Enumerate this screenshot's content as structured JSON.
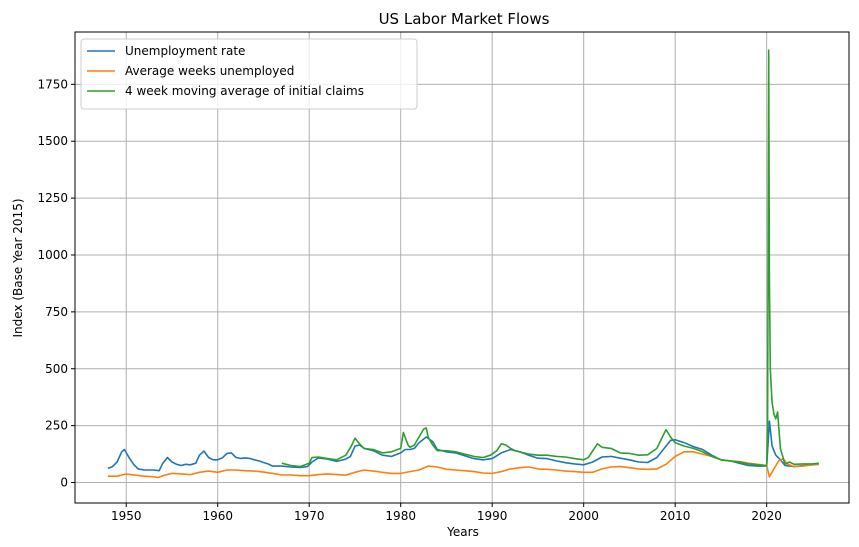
{
  "chart_data": {
    "type": "line",
    "title": "US Labor Market Flows",
    "xlabel": "Years",
    "ylabel": "Index (Base Year 2015)",
    "xlim": [
      1944.4,
      1929.0
    ],
    "ylim": [
      -90,
      1980
    ],
    "x_ticks": [
      1950,
      1960,
      1970,
      1980,
      1990,
      2000,
      2010,
      2020
    ],
    "y_ticks": [
      0,
      250,
      500,
      750,
      1000,
      1250,
      1500,
      1750
    ],
    "grid": true,
    "legend_position": "upper left",
    "series": [
      {
        "name": "Unemployment rate",
        "color": "#1f77b4",
        "points": [
          [
            1948.0,
            62
          ],
          [
            1948.5,
            70
          ],
          [
            1949.0,
            90
          ],
          [
            1949.5,
            135
          ],
          [
            1949.8,
            145
          ],
          [
            1950.3,
            110
          ],
          [
            1950.8,
            80
          ],
          [
            1951.3,
            60
          ],
          [
            1952.0,
            55
          ],
          [
            1952.5,
            55
          ],
          [
            1953.0,
            55
          ],
          [
            1953.6,
            52
          ],
          [
            1954.0,
            85
          ],
          [
            1954.5,
            110
          ],
          [
            1955.0,
            90
          ],
          [
            1955.5,
            80
          ],
          [
            1956.0,
            75
          ],
          [
            1956.5,
            80
          ],
          [
            1957.0,
            78
          ],
          [
            1957.6,
            85
          ],
          [
            1958.0,
            120
          ],
          [
            1958.5,
            138
          ],
          [
            1959.0,
            110
          ],
          [
            1959.5,
            100
          ],
          [
            1960.0,
            100
          ],
          [
            1960.5,
            108
          ],
          [
            1961.0,
            128
          ],
          [
            1961.5,
            130
          ],
          [
            1962.0,
            110
          ],
          [
            1962.5,
            106
          ],
          [
            1963.0,
            108
          ],
          [
            1963.5,
            106
          ],
          [
            1964.0,
            100
          ],
          [
            1964.5,
            95
          ],
          [
            1965.0,
            88
          ],
          [
            1965.5,
            82
          ],
          [
            1966.0,
            72
          ],
          [
            1967.0,
            72
          ],
          [
            1968.0,
            68
          ],
          [
            1969.0,
            66
          ],
          [
            1969.8,
            70
          ],
          [
            1970.3,
            90
          ],
          [
            1971.0,
            108
          ],
          [
            1972.0,
            103
          ],
          [
            1973.0,
            93
          ],
          [
            1974.0,
            103
          ],
          [
            1974.5,
            115
          ],
          [
            1975.0,
            160
          ],
          [
            1975.5,
            165
          ],
          [
            1976.0,
            150
          ],
          [
            1977.0,
            140
          ],
          [
            1978.0,
            120
          ],
          [
            1979.0,
            115
          ],
          [
            1980.0,
            130
          ],
          [
            1980.5,
            145
          ],
          [
            1981.0,
            145
          ],
          [
            1981.5,
            150
          ],
          [
            1982.0,
            175
          ],
          [
            1982.8,
            200
          ],
          [
            1983.5,
            180
          ],
          [
            1984.0,
            145
          ],
          [
            1985.0,
            135
          ],
          [
            1986.0,
            130
          ],
          [
            1987.0,
            118
          ],
          [
            1988.0,
            105
          ],
          [
            1989.0,
            100
          ],
          [
            1990.0,
            105
          ],
          [
            1991.0,
            130
          ],
          [
            1992.0,
            145
          ],
          [
            1993.0,
            135
          ],
          [
            1994.0,
            120
          ],
          [
            1995.0,
            107
          ],
          [
            1996.0,
            105
          ],
          [
            1997.0,
            95
          ],
          [
            1998.0,
            87
          ],
          [
            1999.0,
            82
          ],
          [
            2000.0,
            78
          ],
          [
            2001.0,
            90
          ],
          [
            2002.0,
            112
          ],
          [
            2003.0,
            115
          ],
          [
            2004.0,
            107
          ],
          [
            2005.0,
            100
          ],
          [
            2006.0,
            90
          ],
          [
            2007.0,
            88
          ],
          [
            2008.0,
            110
          ],
          [
            2008.8,
            150
          ],
          [
            2009.5,
            185
          ],
          [
            2010.0,
            188
          ],
          [
            2011.0,
            175
          ],
          [
            2012.0,
            158
          ],
          [
            2013.0,
            145
          ],
          [
            2014.0,
            120
          ],
          [
            2015.0,
            100
          ],
          [
            2016.0,
            95
          ],
          [
            2017.0,
            85
          ],
          [
            2018.0,
            75
          ],
          [
            2019.0,
            72
          ],
          [
            2020.0,
            72
          ],
          [
            2020.3,
            270
          ],
          [
            2020.6,
            160
          ],
          [
            2021.0,
            120
          ],
          [
            2021.5,
            100
          ],
          [
            2022.0,
            75
          ],
          [
            2023.0,
            70
          ],
          [
            2024.0,
            75
          ],
          [
            2025.0,
            78
          ],
          [
            2025.7,
            80
          ]
        ]
      },
      {
        "name": "Average weeks unemployed",
        "color": "#ff7f0e",
        "points": [
          [
            1948.0,
            28
          ],
          [
            1949.0,
            28
          ],
          [
            1950.0,
            38
          ],
          [
            1951.0,
            32
          ],
          [
            1952.0,
            28
          ],
          [
            1953.0,
            25
          ],
          [
            1953.5,
            22
          ],
          [
            1954.0,
            30
          ],
          [
            1955.0,
            40
          ],
          [
            1956.0,
            38
          ],
          [
            1957.0,
            35
          ],
          [
            1958.0,
            45
          ],
          [
            1959.0,
            50
          ],
          [
            1960.0,
            45
          ],
          [
            1961.0,
            55
          ],
          [
            1962.0,
            55
          ],
          [
            1963.0,
            52
          ],
          [
            1964.0,
            50
          ],
          [
            1965.0,
            46
          ],
          [
            1966.0,
            40
          ],
          [
            1967.0,
            33
          ],
          [
            1968.0,
            33
          ],
          [
            1969.0,
            30
          ],
          [
            1970.0,
            30
          ],
          [
            1971.0,
            35
          ],
          [
            1972.0,
            38
          ],
          [
            1973.0,
            35
          ],
          [
            1974.0,
            32
          ],
          [
            1975.0,
            45
          ],
          [
            1976.0,
            55
          ],
          [
            1977.0,
            50
          ],
          [
            1978.0,
            45
          ],
          [
            1979.0,
            40
          ],
          [
            1980.0,
            40
          ],
          [
            1981.0,
            48
          ],
          [
            1982.0,
            55
          ],
          [
            1983.0,
            72
          ],
          [
            1984.0,
            68
          ],
          [
            1985.0,
            58
          ],
          [
            1986.0,
            55
          ],
          [
            1987.0,
            52
          ],
          [
            1988.0,
            48
          ],
          [
            1989.0,
            42
          ],
          [
            1990.0,
            40
          ],
          [
            1991.0,
            48
          ],
          [
            1992.0,
            60
          ],
          [
            1993.0,
            65
          ],
          [
            1994.0,
            68
          ],
          [
            1995.0,
            60
          ],
          [
            1996.0,
            58
          ],
          [
            1997.0,
            55
          ],
          [
            1998.0,
            50
          ],
          [
            1999.0,
            48
          ],
          [
            2000.0,
            45
          ],
          [
            2001.0,
            45
          ],
          [
            2002.0,
            60
          ],
          [
            2003.0,
            68
          ],
          [
            2004.0,
            70
          ],
          [
            2005.0,
            65
          ],
          [
            2006.0,
            60
          ],
          [
            2007.0,
            58
          ],
          [
            2008.0,
            60
          ],
          [
            2009.0,
            80
          ],
          [
            2010.0,
            115
          ],
          [
            2011.0,
            135
          ],
          [
            2012.0,
            135
          ],
          [
            2013.0,
            125
          ],
          [
            2014.0,
            115
          ],
          [
            2015.0,
            100
          ],
          [
            2016.0,
            95
          ],
          [
            2017.0,
            92
          ],
          [
            2018.0,
            85
          ],
          [
            2019.0,
            80
          ],
          [
            2020.0,
            75
          ],
          [
            2020.3,
            25
          ],
          [
            2020.8,
            60
          ],
          [
            2021.3,
            95
          ],
          [
            2021.8,
            105
          ],
          [
            2022.3,
            80
          ],
          [
            2023.0,
            70
          ],
          [
            2024.0,
            72
          ],
          [
            2025.0,
            78
          ],
          [
            2025.7,
            82
          ]
        ]
      },
      {
        "name": "4 week moving average of initial claims",
        "color": "#2ca02c",
        "points": [
          [
            1967.0,
            85
          ],
          [
            1968.0,
            75
          ],
          [
            1969.0,
            70
          ],
          [
            1970.0,
            85
          ],
          [
            1970.3,
            110
          ],
          [
            1971.0,
            112
          ],
          [
            1972.0,
            105
          ],
          [
            1973.0,
            100
          ],
          [
            1974.0,
            120
          ],
          [
            1974.6,
            160
          ],
          [
            1975.0,
            195
          ],
          [
            1975.5,
            170
          ],
          [
            1976.0,
            150
          ],
          [
            1977.0,
            145
          ],
          [
            1978.0,
            130
          ],
          [
            1979.0,
            135
          ],
          [
            1980.0,
            150
          ],
          [
            1980.3,
            220
          ],
          [
            1980.8,
            165
          ],
          [
            1981.0,
            155
          ],
          [
            1981.5,
            165
          ],
          [
            1982.0,
            200
          ],
          [
            1982.5,
            235
          ],
          [
            1982.8,
            240
          ],
          [
            1983.0,
            200
          ],
          [
            1983.5,
            165
          ],
          [
            1984.0,
            140
          ],
          [
            1985.0,
            140
          ],
          [
            1986.0,
            135
          ],
          [
            1987.0,
            125
          ],
          [
            1988.0,
            115
          ],
          [
            1989.0,
            110
          ],
          [
            1989.8,
            120
          ],
          [
            1990.5,
            140
          ],
          [
            1991.0,
            170
          ],
          [
            1991.5,
            165
          ],
          [
            1992.0,
            150
          ],
          [
            1992.5,
            140
          ],
          [
            1993.0,
            135
          ],
          [
            1994.0,
            125
          ],
          [
            1995.0,
            120
          ],
          [
            1996.0,
            120
          ],
          [
            1997.0,
            115
          ],
          [
            1998.0,
            112
          ],
          [
            1999.0,
            105
          ],
          [
            2000.0,
            100
          ],
          [
            2000.5,
            110
          ],
          [
            2001.0,
            140
          ],
          [
            2001.5,
            170
          ],
          [
            2002.0,
            155
          ],
          [
            2003.0,
            150
          ],
          [
            2004.0,
            130
          ],
          [
            2005.0,
            128
          ],
          [
            2006.0,
            120
          ],
          [
            2007.0,
            122
          ],
          [
            2008.0,
            150
          ],
          [
            2008.6,
            200
          ],
          [
            2009.0,
            232
          ],
          [
            2009.5,
            200
          ],
          [
            2010.0,
            175
          ],
          [
            2011.0,
            160
          ],
          [
            2012.0,
            150
          ],
          [
            2013.0,
            135
          ],
          [
            2014.0,
            115
          ],
          [
            2015.0,
            100
          ],
          [
            2016.0,
            95
          ],
          [
            2017.0,
            90
          ],
          [
            2018.0,
            82
          ],
          [
            2019.0,
            78
          ],
          [
            2020.0,
            75
          ],
          [
            2020.1,
            260
          ],
          [
            2020.22,
            1900
          ],
          [
            2020.3,
            900
          ],
          [
            2020.4,
            500
          ],
          [
            2020.6,
            350
          ],
          [
            2020.8,
            300
          ],
          [
            2021.0,
            280
          ],
          [
            2021.2,
            310
          ],
          [
            2021.5,
            150
          ],
          [
            2022.0,
            80
          ],
          [
            2022.5,
            90
          ],
          [
            2023.0,
            80
          ],
          [
            2024.0,
            82
          ],
          [
            2025.0,
            82
          ],
          [
            2025.7,
            85
          ]
        ]
      }
    ]
  }
}
